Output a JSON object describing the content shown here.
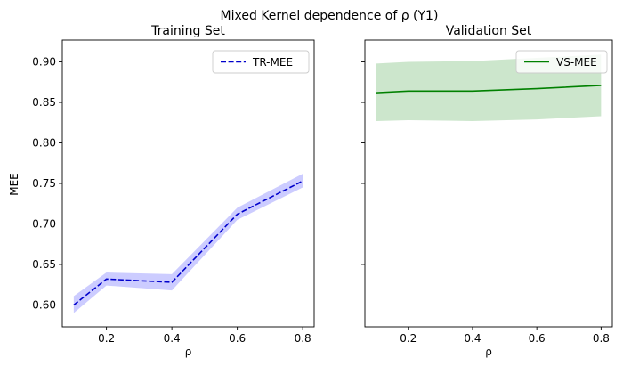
{
  "chart_data": {
    "suptitle": "Mixed Kernel dependence of ρ (Y1)",
    "ylabel": "MEE",
    "ylim": [
      0.573,
      0.927
    ],
    "yticks": [
      0.6,
      0.65,
      0.7,
      0.75,
      0.8,
      0.85,
      0.9
    ],
    "ytick_labels": [
      "0.60",
      "0.65",
      "0.70",
      "0.75",
      "0.80",
      "0.85",
      "0.90"
    ],
    "xlim": [
      0.065,
      0.835
    ],
    "xticks": [
      0.2,
      0.4,
      0.6,
      0.8
    ],
    "xtick_labels": [
      "0.2",
      "0.4",
      "0.6",
      "0.8"
    ],
    "sharey": true,
    "panels": [
      {
        "type": "line",
        "title": "Training Set",
        "xlabel": "ρ",
        "legend_position": "top-right",
        "series": [
          {
            "name": "TR-MEE",
            "style": "dashed",
            "color": "#0000cc",
            "band_color": "#0000ff",
            "x": [
              0.1,
              0.2,
              0.4,
              0.6,
              0.8
            ],
            "y": [
              0.6,
              0.632,
              0.628,
              0.712,
              0.753
            ],
            "lower": [
              0.59,
              0.624,
              0.618,
              0.705,
              0.745
            ],
            "upper": [
              0.611,
              0.64,
              0.638,
              0.72,
              0.762
            ]
          }
        ]
      },
      {
        "type": "line",
        "title": "Validation Set",
        "xlabel": "ρ",
        "legend_position": "top-right",
        "series": [
          {
            "name": "VS-MEE",
            "style": "solid",
            "color": "#008000",
            "band_color": "#008000",
            "x": [
              0.1,
              0.2,
              0.4,
              0.6,
              0.8
            ],
            "y": [
              0.862,
              0.864,
              0.864,
              0.867,
              0.871
            ],
            "lower": [
              0.827,
              0.828,
              0.827,
              0.829,
              0.833
            ],
            "upper": [
              0.898,
              0.9,
              0.901,
              0.905,
              0.909
            ]
          }
        ]
      }
    ]
  }
}
